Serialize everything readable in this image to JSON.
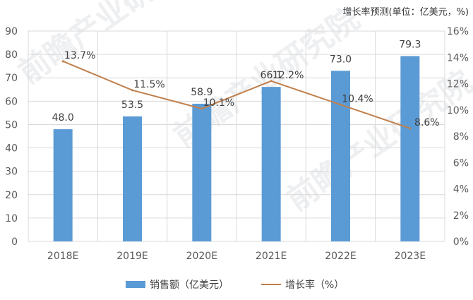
{
  "header_note": "增长率预测(单位：亿美元，%)",
  "colors": {
    "bar": "#5b9bd5",
    "line": "#c0804d",
    "grid": "#d9d9d9",
    "axis_text": "#595959"
  },
  "chart_data": {
    "type": "bar",
    "categories": [
      "2018E",
      "2019E",
      "2020E",
      "2021E",
      "2022E",
      "2023E"
    ],
    "series": [
      {
        "name": "销售额（亿美元）",
        "type": "bar",
        "axis": "left",
        "values": [
          48.0,
          53.5,
          58.9,
          66.1,
          73.0,
          79.3
        ],
        "labels": [
          "48.0",
          "53.5",
          "58.9",
          "66.1",
          "73.0",
          "79.3"
        ]
      },
      {
        "name": "增长率（%）",
        "type": "line",
        "axis": "right",
        "values": [
          13.7,
          11.5,
          10.1,
          12.2,
          10.4,
          8.6
        ],
        "labels": [
          "13.7%",
          "11.5%",
          "10.1%",
          "12.2%",
          "10.4%",
          "8.6%"
        ]
      }
    ],
    "ylim": [
      0,
      90
    ],
    "y_ticks": [
      "0",
      "10",
      "20",
      "30",
      "40",
      "50",
      "60",
      "70",
      "80",
      "90"
    ],
    "y2lim": [
      0,
      16
    ],
    "y2_ticks": [
      "0%",
      "2%",
      "4%",
      "6%",
      "8%",
      "10%",
      "12%",
      "14%",
      "16%"
    ],
    "grid": true,
    "legend_position": "bottom"
  }
}
